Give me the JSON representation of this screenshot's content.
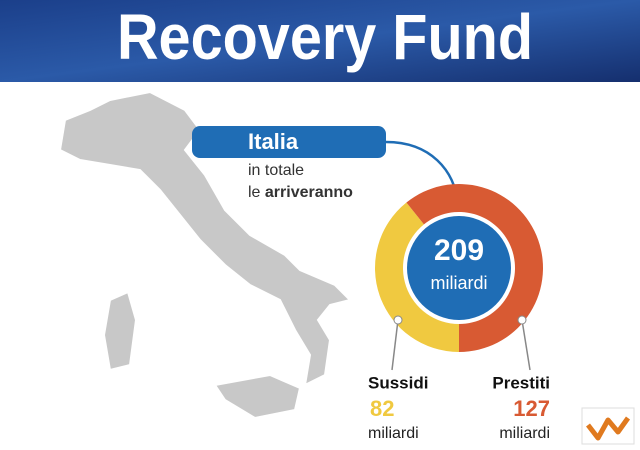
{
  "header": {
    "title": "Recovery Fund"
  },
  "callout": {
    "label": "Italia",
    "line1": "in totale",
    "line2_prefix": "le",
    "line2_bold": "arriveranno"
  },
  "chart_data": {
    "type": "donut",
    "categories": [
      "Sussidi",
      "Prestiti"
    ],
    "values": [
      82,
      127
    ],
    "colors": [
      "#f0c940",
      "#d85a33"
    ],
    "total": 209,
    "unit": "miliardi"
  }
}
